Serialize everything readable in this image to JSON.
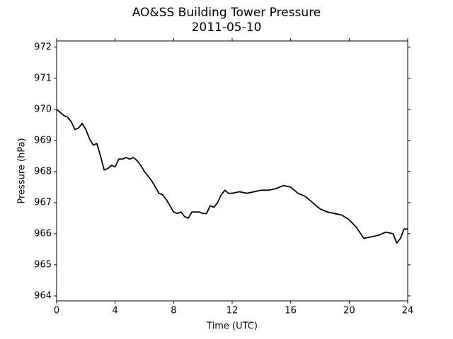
{
  "chart_data": {
    "type": "line",
    "title": "AO&SS Building Tower Pressure",
    "subtitle": "2011-05-10",
    "x_label": "Time (UTC)",
    "y_label": "Pressure (hPa)",
    "x": [
      0,
      0.25,
      0.5,
      0.75,
      1,
      1.25,
      1.5,
      1.75,
      2,
      2.25,
      2.5,
      2.75,
      3,
      3.25,
      3.5,
      3.75,
      4,
      4.25,
      4.5,
      4.75,
      5,
      5.25,
      5.5,
      5.75,
      6,
      6.25,
      6.5,
      6.75,
      7,
      7.25,
      7.5,
      7.75,
      8,
      8.25,
      8.5,
      8.75,
      9,
      9.25,
      9.5,
      9.75,
      10,
      10.25,
      10.5,
      10.75,
      11,
      11.25,
      11.5,
      11.75,
      12,
      12.5,
      13,
      13.5,
      14,
      14.5,
      15,
      15.5,
      16,
      16.5,
      17,
      17.5,
      18,
      18.5,
      19,
      19.5,
      20,
      20.5,
      21,
      21.5,
      22,
      22.5,
      23,
      23.25,
      23.5,
      23.75,
      24
    ],
    "series": [
      {
        "name": "Pressure",
        "color": "#000000",
        "values": [
          970.0,
          969.9,
          969.8,
          969.75,
          969.6,
          969.35,
          969.4,
          969.55,
          969.35,
          969.05,
          968.85,
          968.9,
          968.5,
          968.05,
          968.1,
          968.2,
          968.15,
          968.4,
          968.4,
          968.45,
          968.4,
          968.45,
          968.35,
          968.2,
          968.0,
          967.85,
          967.7,
          967.5,
          967.3,
          967.25,
          967.1,
          966.9,
          966.7,
          966.65,
          966.7,
          966.55,
          966.5,
          966.7,
          966.7,
          966.7,
          966.65,
          966.65,
          966.9,
          966.85,
          967.0,
          967.25,
          967.4,
          967.3,
          967.3,
          967.35,
          967.3,
          967.35,
          967.4,
          967.4,
          967.45,
          967.55,
          967.5,
          967.3,
          967.2,
          967.0,
          966.8,
          966.7,
          966.65,
          966.6,
          966.45,
          966.2,
          965.85,
          965.9,
          965.95,
          966.05,
          966.0,
          965.7,
          965.85,
          966.15,
          966.15
        ]
      }
    ],
    "xlim": [
      0,
      24
    ],
    "xticks": [
      0,
      4,
      8,
      12,
      16,
      20,
      24
    ],
    "ylim": [
      963.84,
      972.2
    ],
    "yticks": [
      964,
      965,
      966,
      967,
      968,
      969,
      970,
      971,
      972
    ],
    "grid": false
  }
}
